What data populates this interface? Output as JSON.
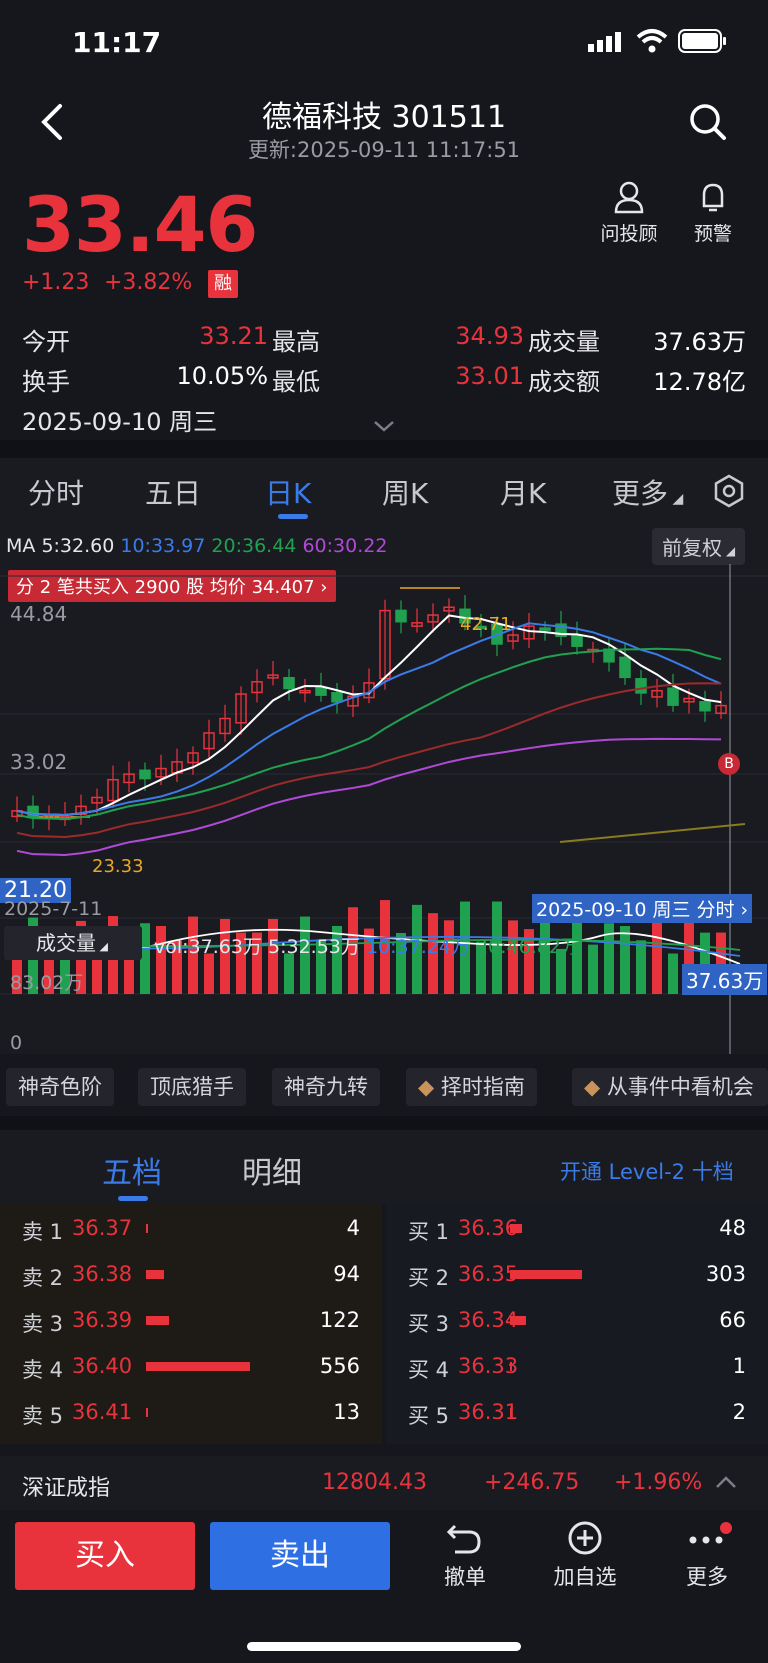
{
  "status_bar": {
    "time": "11:17"
  },
  "header": {
    "title": "德福科技 301511",
    "updated": "更新:2025-09-11 11:17:51"
  },
  "quote": {
    "price": "33.46",
    "change": "+1.23",
    "change_pct": "+3.82%",
    "margin_badge": "融"
  },
  "top_actions": {
    "advisor": "问投顾",
    "alert": "预警"
  },
  "stats": {
    "open_label": "今开",
    "open": "33.21",
    "high_label": "最高",
    "high": "34.93",
    "vol_label": "成交量",
    "vol": "37.63万",
    "turnover_label": "换手",
    "turnover": "10.05%",
    "low_label": "最低",
    "low": "33.01",
    "amount_label": "成交额",
    "amount": "12.78亿",
    "date": "2025-09-10 周三"
  },
  "tabs": [
    "分时",
    "五日",
    "日K",
    "周K",
    "月K",
    "更多"
  ],
  "ma": {
    "prefix": "MA",
    "ma5": "5:32.60",
    "ma10": "10:33.97",
    "ma20": "20:36.44",
    "ma60": "60:30.22"
  },
  "fq_label": "前复权",
  "trade_banner": "分 2 笔共买入 2900 股 均价 34.407 ›",
  "chart_labels": {
    "y_top": "44.84",
    "y_mid": "33.02",
    "y_bottom": "21.20",
    "start_date": "2025-7-11",
    "max_marker": "42.71",
    "min_marker": "23.33",
    "cursor_label": "2025-09-10 周三 分时 ›",
    "buy_marker": "B"
  },
  "volume": {
    "select_label": "成交量",
    "vol": "vol:37.63万",
    "ma5": "5:32.53万",
    "ma10": "10:37.24万",
    "ma20": "20:46.82万",
    "y_top": "83.02万",
    "y_zero": "0",
    "cursor_value": "37.63万"
  },
  "tools": [
    "神奇色阶",
    "顶底猎手",
    "神奇九转",
    "择时指南",
    "从事件中看机会"
  ],
  "orderbook_tabs": {
    "five": "五档",
    "detail": "明细",
    "level2": "开通 Level-2 十档"
  },
  "sell": [
    {
      "label": "卖 1",
      "price": "36.37",
      "qty": "4",
      "ratio": 0.01
    },
    {
      "label": "卖 2",
      "price": "36.38",
      "qty": "94",
      "ratio": 0.17
    },
    {
      "label": "卖 3",
      "price": "36.39",
      "qty": "122",
      "ratio": 0.22
    },
    {
      "label": "卖 4",
      "price": "36.40",
      "qty": "556",
      "ratio": 1.0
    },
    {
      "label": "卖 5",
      "price": "36.41",
      "qty": "13",
      "ratio": 0.02
    }
  ],
  "buy": [
    {
      "label": "买 1",
      "price": "36.36",
      "qty": "48",
      "ratio": 0.16
    },
    {
      "label": "买 2",
      "price": "36.35",
      "qty": "303",
      "ratio": 1.0
    },
    {
      "label": "买 3",
      "price": "36.34",
      "qty": "66",
      "ratio": 0.22
    },
    {
      "label": "买 4",
      "price": "36.33",
      "qty": "1",
      "ratio": 0.01
    },
    {
      "label": "买 5",
      "price": "36.31",
      "qty": "2",
      "ratio": 0.01
    }
  ],
  "index_bar": {
    "name": "深证成指",
    "value": "12804.43",
    "change": "+246.75",
    "pct": "+1.96%"
  },
  "actions": {
    "buy": "买入",
    "sell": "卖出",
    "cancel": "撤单",
    "watch": "加自选",
    "more": "更多"
  },
  "colors": {
    "up": "#e8333c",
    "down": "#20a150",
    "accent": "#3b7be8",
    "bg": "#16171c"
  }
}
